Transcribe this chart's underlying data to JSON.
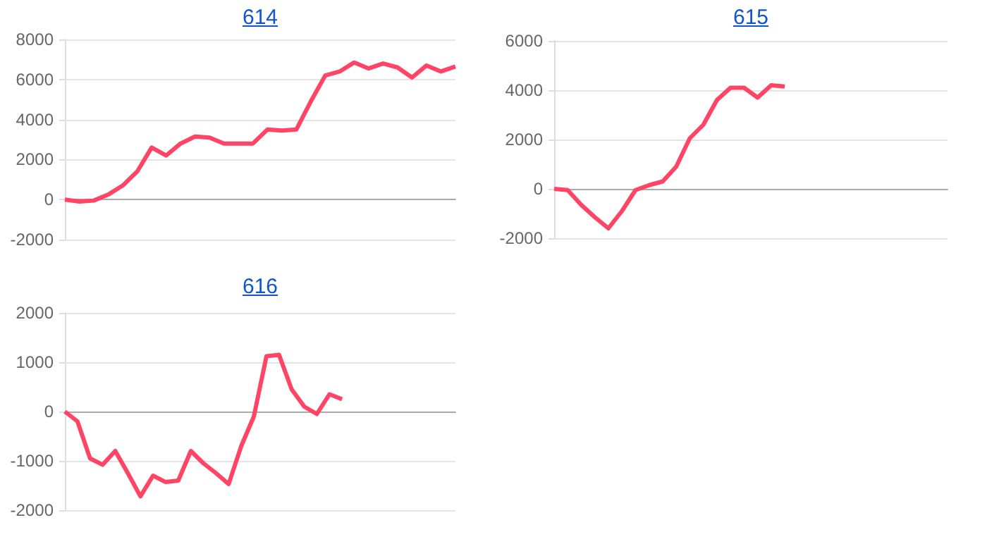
{
  "chart_data": [
    {
      "type": "line",
      "title": "614",
      "categories": [
        null,
        null,
        null,
        null,
        null,
        null,
        null,
        null,
        null,
        null,
        null,
        null,
        null,
        null,
        null,
        null,
        null,
        null,
        null,
        null,
        null,
        null,
        null,
        null,
        null,
        null,
        null,
        null
      ],
      "series": [
        {
          "color": "#ff4466",
          "values": [
            0,
            -100,
            -50,
            250,
            700,
            1400,
            2600,
            2200,
            2800,
            3150,
            3100,
            2800,
            2800,
            2800,
            3500,
            3450,
            3500,
            4900,
            6200,
            6400,
            6850,
            6550,
            6800,
            6600,
            6100,
            6700,
            6400,
            6650
          ]
        }
      ],
      "ylim": [
        -2000,
        8000
      ],
      "yticks": [
        -2000,
        0,
        2000,
        4000,
        6000,
        8000
      ],
      "grid": "y",
      "marker": "none"
    },
    {
      "type": "line",
      "title": "615",
      "categories": [
        null,
        null,
        null,
        null,
        null,
        null,
        null,
        null,
        null,
        null,
        null,
        null,
        null,
        null,
        null,
        null,
        null,
        null,
        null,
        null,
        null,
        null,
        null,
        null,
        null,
        null,
        null,
        null,
        null,
        null
      ],
      "series": [
        {
          "color": "#ff4466",
          "values": [
            0,
            -50,
            -650,
            -1150,
            -1600,
            -900,
            -50,
            150,
            300,
            900,
            2050,
            2600,
            3600,
            4100,
            4100,
            3700,
            4200,
            4150,
            null,
            null,
            null,
            null,
            null,
            null,
            null,
            null,
            null,
            null,
            null,
            null
          ]
        }
      ],
      "ylim": [
        -2000,
        6000
      ],
      "yticks": [
        -2000,
        0,
        2000,
        4000,
        6000
      ],
      "grid": "y",
      "marker": "none"
    },
    {
      "type": "line",
      "title": "616",
      "categories": [
        null,
        null,
        null,
        null,
        null,
        null,
        null,
        null,
        null,
        null,
        null,
        null,
        null,
        null,
        null,
        null,
        null,
        null,
        null,
        null,
        null,
        null,
        null,
        null,
        null,
        null,
        null,
        null,
        null,
        null,
        null,
        null
      ],
      "series": [
        {
          "color": "#ff4466",
          "values": [
            0,
            -200,
            -950,
            -1080,
            -800,
            -1250,
            -1720,
            -1300,
            -1430,
            -1400,
            -800,
            -1050,
            -1250,
            -1470,
            -700,
            -100,
            1120,
            1150,
            450,
            100,
            -50,
            350,
            250,
            null,
            null,
            null,
            null,
            null,
            null,
            null,
            null,
            null
          ]
        }
      ],
      "ylim": [
        -2000,
        2000
      ],
      "yticks": [
        -2000,
        -1000,
        0,
        1000,
        2000
      ],
      "grid": "y",
      "marker": "none"
    }
  ]
}
